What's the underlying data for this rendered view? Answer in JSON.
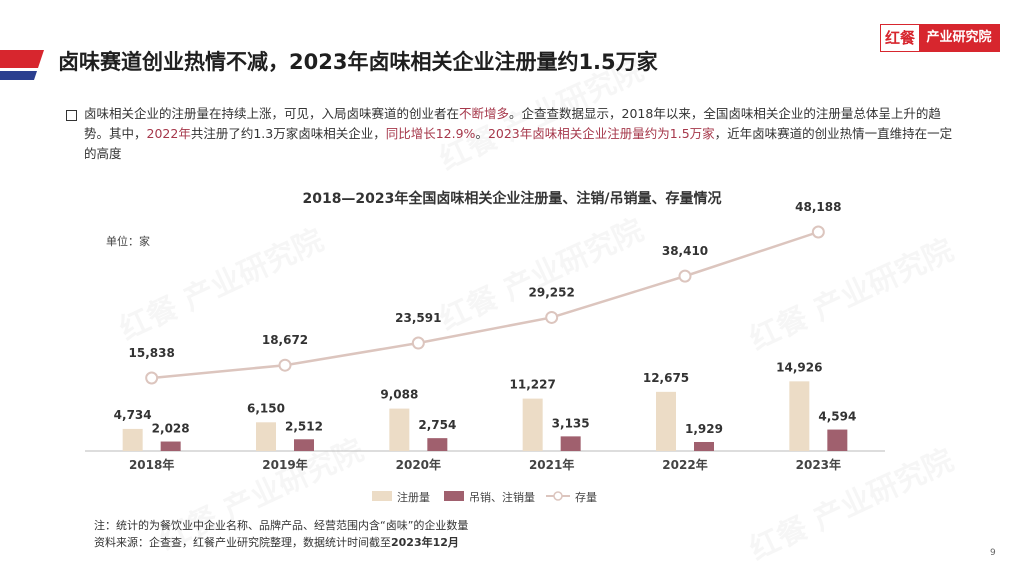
{
  "header": {
    "title": "卤味赛道创业热情不减，2023年卤味相关企业注册量约1.5万家",
    "logo_mark": "红餐",
    "logo_text": "产业研究院"
  },
  "paragraph": {
    "p1": "卤味相关企业的注册量在持续上涨，可见，入局卤味赛道的创业者在",
    "h1": "不断增多",
    "p2": "。企查查数据显示，2018年以来，全国卤味相关企业的注册量总体呈上升的趋势。其中，",
    "h2": "2022年",
    "p3": "共注册了约1.3万家卤味相关企业，",
    "h3": "同比增长12.9%",
    "p4": "。",
    "h4": "2023年卤味相关企业注册量约为1.5万家",
    "p5": "，近年卤味赛道的创业热情一直维持在一定的高度"
  },
  "chart_data": {
    "type": "bar+line",
    "title": "2018—2023年全国卤味相关企业注册量、注销/吊销量、存量情况",
    "unit": "单位：家",
    "categories": [
      "2018年",
      "2019年",
      "2020年",
      "2021年",
      "2022年",
      "2023年"
    ],
    "series": [
      {
        "name": "注册量",
        "kind": "bar",
        "color": "#ecdcc6",
        "values": [
          4734,
          6150,
          9088,
          11227,
          12675,
          14926
        ],
        "labels": [
          "4,734",
          "6,150",
          "9,088",
          "11,227",
          "12,675",
          "14,926"
        ]
      },
      {
        "name": "吊销、注销量",
        "kind": "bar",
        "color": "#a0606e",
        "values": [
          2028,
          2512,
          2754,
          3135,
          1929,
          4594
        ],
        "labels": [
          "2,028",
          "2,512",
          "2,754",
          "3,135",
          "1,929",
          "4,594"
        ]
      },
      {
        "name": "存量",
        "kind": "line",
        "color": "#dcc5be",
        "values": [
          15838,
          18672,
          23591,
          29252,
          38410,
          48188
        ],
        "labels": [
          "15,838",
          "18,672",
          "23,591",
          "29,252",
          "38,410",
          "48,188"
        ]
      }
    ],
    "legend_position": "bottom"
  },
  "notes": {
    "line1": "注：统计的为餐饮业中企业名称、品牌产品、经营范围内含“卤味”的企业数量",
    "line2_prefix": "资料来源：企查查，红餐产业研究院整理，数据统计时间截至",
    "line2_bold": "2023年12月"
  },
  "page_number": "9",
  "colors": {
    "accent_red": "#d7262e",
    "accent_blue": "#2b3f8f",
    "highlight": "#a6384b"
  }
}
